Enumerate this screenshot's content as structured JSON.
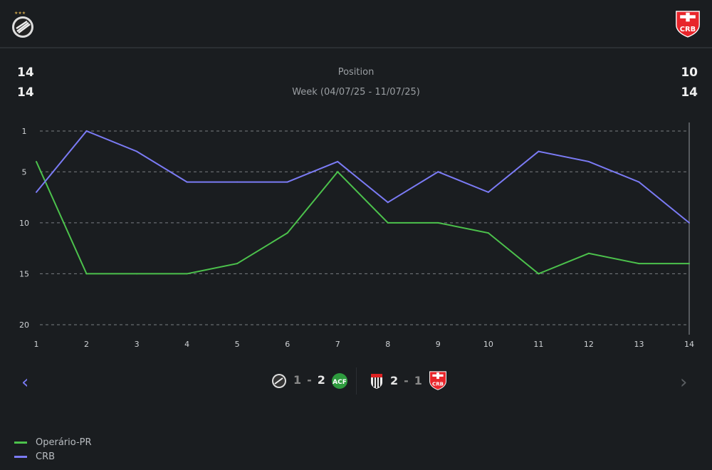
{
  "teams": {
    "home": {
      "name": "Operário-PR",
      "color": "#4cc24c"
    },
    "away": {
      "name": "CRB",
      "color": "#7b7bf5",
      "logo_text": "CRB"
    }
  },
  "stats": {
    "home_position": "14",
    "home_week": "14",
    "away_position": "10",
    "away_week": "14",
    "position_label": "Position",
    "week_label": "Week (04/07/25 - 11/07/25)"
  },
  "matches": [
    {
      "home_score": "1",
      "sep": "-",
      "away_score": "2",
      "home_team_icon": "operario-logo",
      "away_team_icon": "chapecoense-logo"
    },
    {
      "home_score": "2",
      "sep": "-",
      "away_score": "1",
      "home_team_icon": "atletico-go-logo",
      "away_team_icon": "crb-logo"
    }
  ],
  "nav": {
    "prev": "‹",
    "next": "›"
  },
  "chart_data": {
    "type": "line",
    "x": [
      1,
      2,
      3,
      4,
      5,
      6,
      7,
      8,
      9,
      10,
      11,
      12,
      13,
      14
    ],
    "y_ticks": [
      1,
      5,
      10,
      15,
      20
    ],
    "ylim": [
      20,
      1
    ],
    "y_inverted": true,
    "grid": true,
    "legend": "bottom-left",
    "series": [
      {
        "name": "Operário-PR",
        "color": "#4cc24c",
        "values": [
          4,
          15,
          15,
          15,
          14,
          11,
          5,
          10,
          10,
          11,
          15,
          13,
          14,
          14
        ]
      },
      {
        "name": "CRB",
        "color": "#7b7bf5",
        "values": [
          7,
          1,
          3,
          6,
          6,
          6,
          4,
          8,
          5,
          7,
          3,
          4,
          6,
          10
        ]
      }
    ]
  }
}
